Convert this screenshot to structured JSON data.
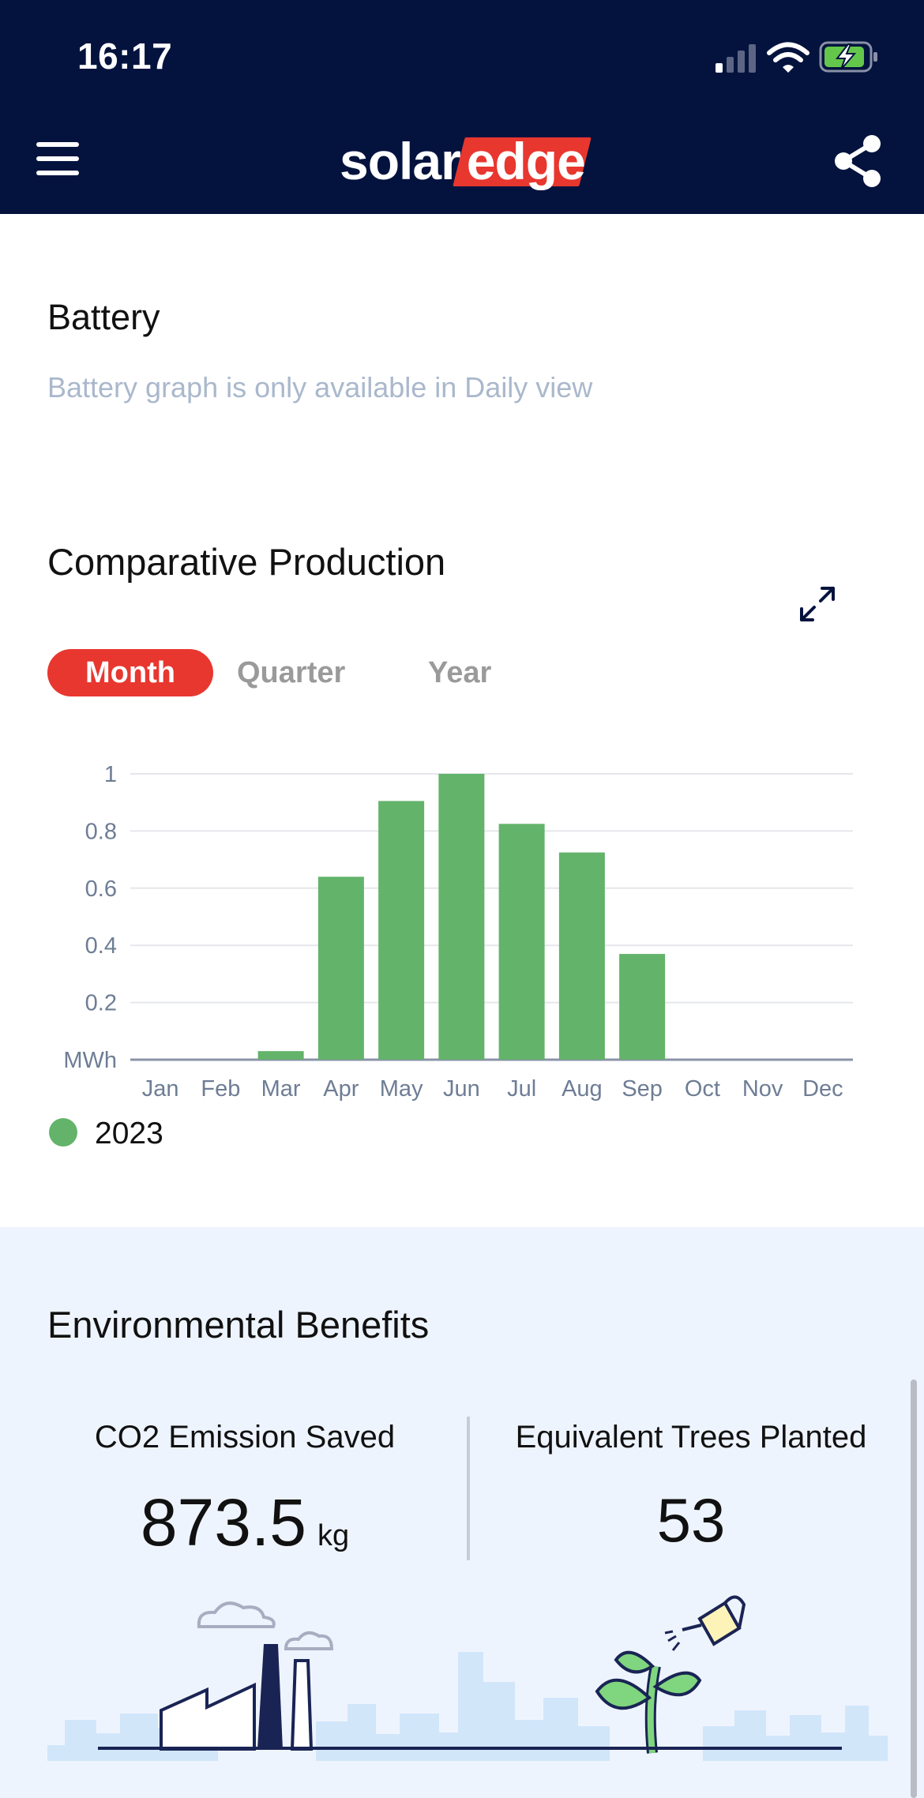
{
  "status_bar": {
    "time": "16:17"
  },
  "header": {
    "logo_part1": "solar",
    "logo_part2": "edge"
  },
  "battery": {
    "title": "Battery",
    "note": "Battery graph is only available in Daily view"
  },
  "comparative_production": {
    "title": "Comparative Production",
    "tabs": [
      {
        "label": "Month",
        "selected": true
      },
      {
        "label": "Quarter",
        "selected": false
      },
      {
        "label": "Year",
        "selected": false
      }
    ]
  },
  "chart_data": {
    "type": "bar",
    "categories": [
      "Jan",
      "Feb",
      "Mar",
      "Apr",
      "May",
      "Jun",
      "Jul",
      "Aug",
      "Sep",
      "Oct",
      "Nov",
      "Dec"
    ],
    "series": [
      {
        "name": "2023",
        "color": "#63B36B",
        "values": [
          0,
          0,
          0.03,
          0.64,
          0.905,
          1.0,
          0.825,
          0.725,
          0.37,
          0,
          0,
          0
        ]
      }
    ],
    "y_ticks": [
      "MWh",
      "0.2",
      "0.4",
      "0.6",
      "0.8",
      "1"
    ],
    "ylim": [
      0,
      1
    ],
    "grid": true,
    "legend": "bottom-left"
  },
  "environmental": {
    "title": "Environmental Benefits",
    "co2_label": "CO2 Emission Saved",
    "co2_value": "873.5",
    "co2_unit": "kg",
    "trees_label": "Equivalent Trees Planted",
    "trees_value": "53"
  },
  "colors": {
    "header_bg": "#03133E",
    "accent": "#E8372F",
    "bar": "#63B36B",
    "env_bg": "#EEF4FE"
  }
}
